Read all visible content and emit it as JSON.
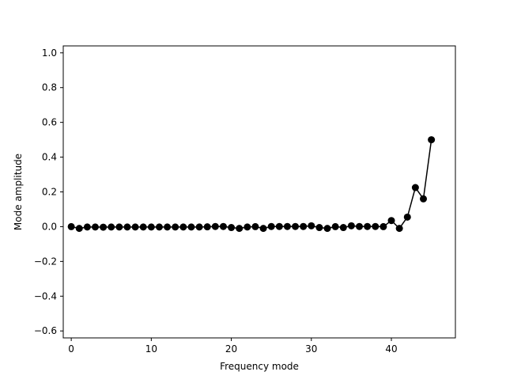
{
  "chart_data": {
    "type": "line",
    "title": "",
    "xlabel": "Frequency mode",
    "ylabel": "Mode amplitude",
    "xlim": [
      -1,
      48
    ],
    "ylim": [
      -0.64,
      1.04
    ],
    "xticks": [
      0,
      10,
      20,
      30,
      40
    ],
    "yticks": [
      -0.6,
      -0.4,
      -0.2,
      0.0,
      0.2,
      0.4,
      0.6,
      0.8,
      1.0
    ],
    "xtick_labels": [
      "0",
      "10",
      "20",
      "30",
      "40"
    ],
    "ytick_labels": [
      "−0.6",
      "−0.4",
      "−0.2",
      "0.0",
      "0.2",
      "0.4",
      "0.6",
      "0.8",
      "1.0"
    ],
    "grid": false,
    "legend": "none",
    "series": [
      {
        "color": "#000000",
        "marker": "circle",
        "x": [
          0,
          1,
          2,
          3,
          4,
          5,
          6,
          7,
          8,
          9,
          10,
          11,
          12,
          13,
          14,
          15,
          16,
          17,
          18,
          19,
          20,
          21,
          22,
          23,
          24,
          25,
          26,
          27,
          28,
          29,
          30,
          31,
          32,
          33,
          34,
          35,
          36,
          37,
          38,
          39,
          40,
          41,
          42,
          43,
          44,
          45
        ],
        "y": [
          0.0,
          -0.01,
          -0.002,
          -0.002,
          -0.003,
          -0.002,
          -0.002,
          -0.002,
          -0.002,
          -0.002,
          -0.002,
          -0.002,
          -0.002,
          -0.002,
          -0.002,
          -0.002,
          -0.002,
          -0.001,
          0.001,
          0.001,
          -0.005,
          -0.01,
          -0.002,
          0.0,
          -0.01,
          0.001,
          0.001,
          0.001,
          0.001,
          0.001,
          0.005,
          -0.005,
          -0.01,
          0.0,
          -0.005,
          0.005,
          0.001,
          0.001,
          0.001,
          0.0,
          0.035,
          -0.01,
          0.055,
          0.225,
          0.16,
          0.5
        ]
      }
    ]
  }
}
